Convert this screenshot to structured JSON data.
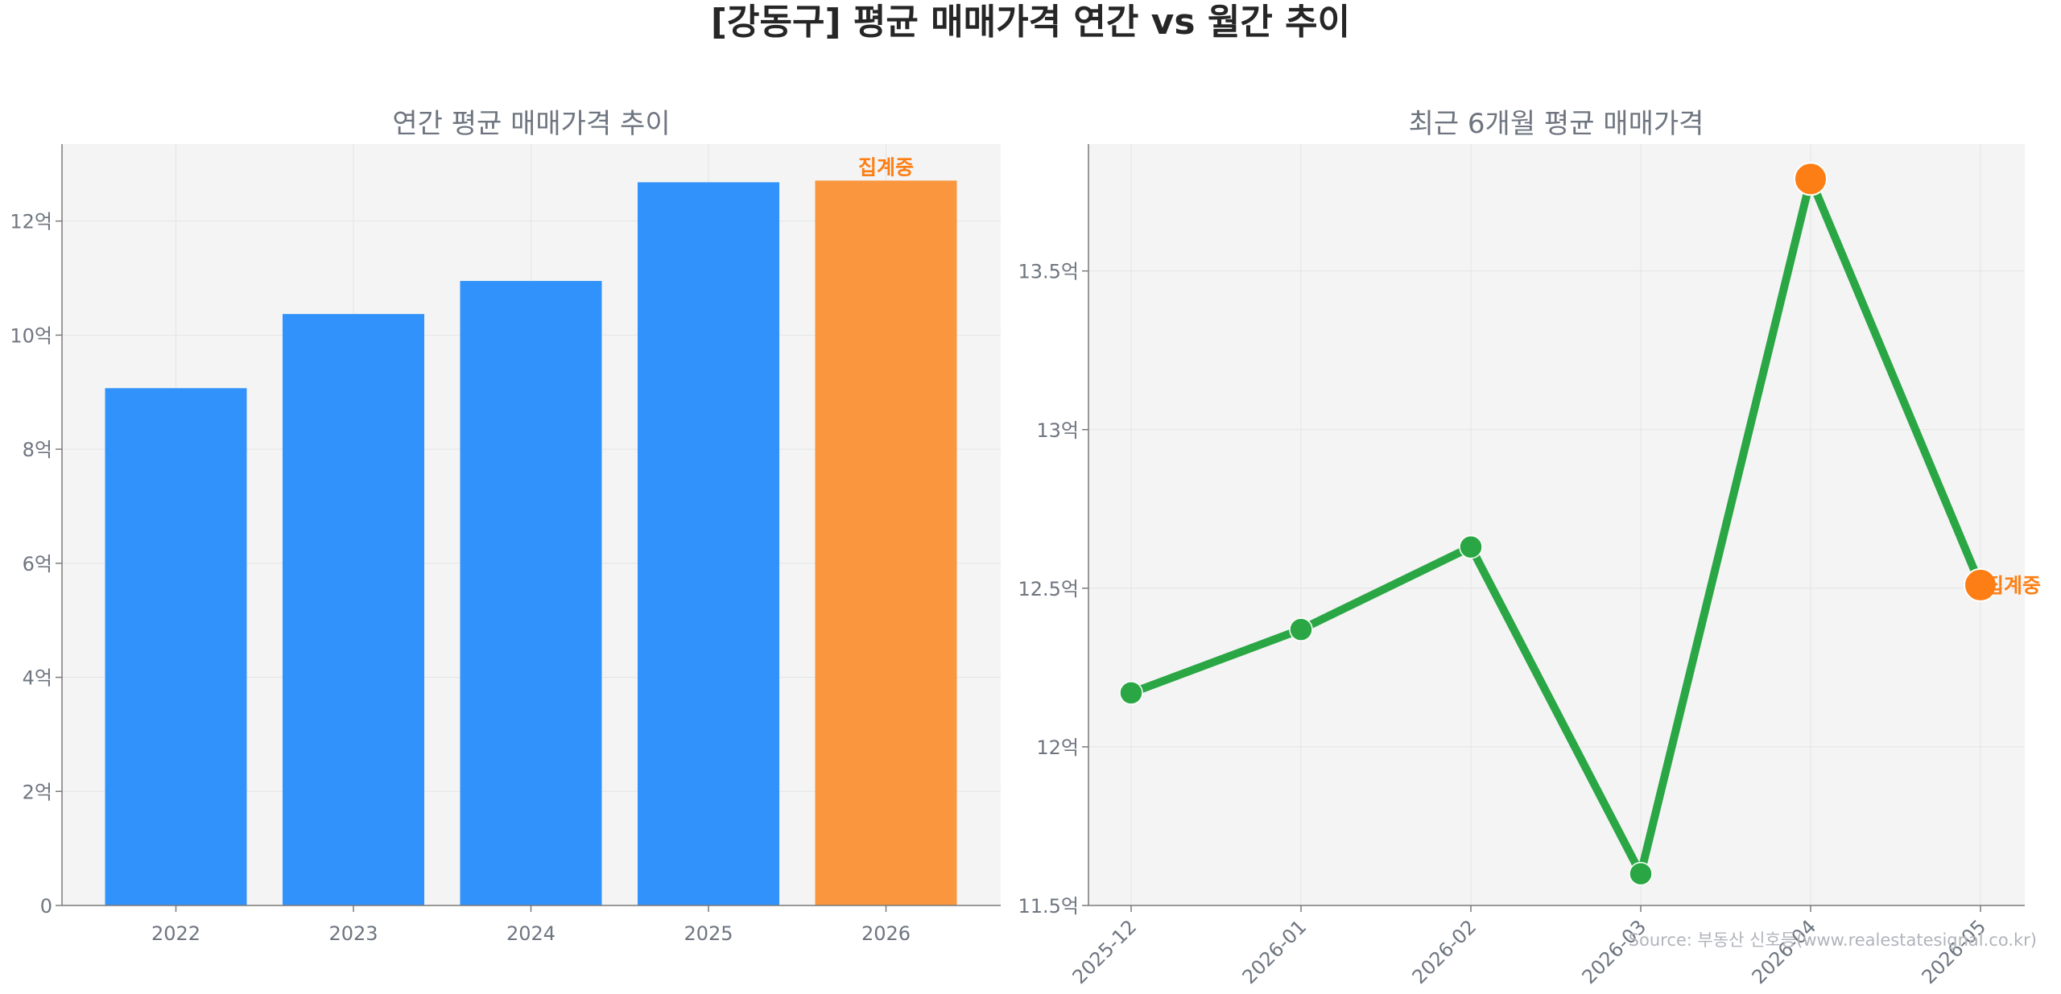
{
  "figure": {
    "suptitle": "[강동구] 평균 매매가격 연간 vs 월간 추이",
    "source": "Source: 부동산 신호등(www.realestatesignal.co.kr)"
  },
  "colors": {
    "bar": "#3292fb",
    "bar_highlight": "#f9963e",
    "line": "#2aa744",
    "highlight_marker": "#fd7e14",
    "annotation": "#fd7e14",
    "panel_bg": "#f4f4f4",
    "title_text": "#6e7580",
    "tick_text": "#6e7580",
    "axis": "#7a7a7a"
  },
  "chart_data": [
    {
      "type": "bar",
      "title": "연간 평균 매매가격 추이",
      "categories": [
        "2022",
        "2023",
        "2024",
        "2025",
        "2026"
      ],
      "values": [
        9.07,
        10.37,
        10.95,
        12.68,
        12.71
      ],
      "highlight_index": 4,
      "annotation": "집계중",
      "yticks": [
        0,
        2,
        4,
        6,
        8,
        10,
        12
      ],
      "ytick_labels": [
        "0",
        "2억",
        "4억",
        "6억",
        "8억",
        "10억",
        "12억"
      ],
      "ylim": [
        0,
        13.35
      ],
      "xlabel": "",
      "ylabel": "",
      "grid": true
    },
    {
      "type": "line",
      "title": "최근 6개월 평균 매매가격",
      "categories": [
        "2025-12",
        "2026-01",
        "2026-02",
        "2026-03",
        "2026-04",
        "2026-05"
      ],
      "values": [
        12.17,
        12.37,
        12.63,
        11.6,
        13.79,
        12.51
      ],
      "highlight_indices": [
        4,
        5
      ],
      "annotation": "집계중",
      "annotation_index": 5,
      "yticks": [
        11.5,
        12.0,
        12.5,
        13.0,
        13.5
      ],
      "ytick_labels": [
        "11.5억",
        "12억",
        "12.5억",
        "13억",
        "13.5억"
      ],
      "ylim": [
        11.5,
        13.9
      ],
      "xlabel": "",
      "ylabel": "",
      "grid": true
    }
  ]
}
